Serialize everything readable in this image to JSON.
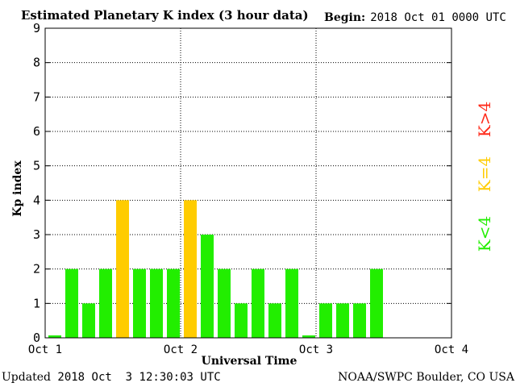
{
  "header": {
    "title": "Estimated Planetary K index (3 hour data)",
    "begin_label": "Begin:",
    "begin_value": "2018 Oct 01 0000 UTC"
  },
  "footer": {
    "updated_label": "Updated",
    "updated_value": "2018 Oct  3 12:30:03 UTC",
    "source": "NOAA/SWPC Boulder, CO USA"
  },
  "legend": {
    "high": {
      "label": "K>4",
      "color": "#ff2a1a"
    },
    "mid": {
      "label": "K=4",
      "color": "#ffcc00"
    },
    "low": {
      "label": "K<4",
      "color": "#22ee00"
    }
  },
  "chart_data": {
    "type": "bar",
    "title": "Estimated Planetary K index (3 hour data)",
    "xlabel": "Universal Time",
    "ylabel": "Kp index",
    "ylim": [
      0,
      9
    ],
    "yticks": [
      0,
      1,
      2,
      3,
      4,
      5,
      6,
      7,
      8,
      9
    ],
    "xticks": [
      "Oct 1",
      "Oct 2",
      "Oct 3",
      "Oct 4"
    ],
    "grid": true,
    "interval_hours": 3,
    "x": [
      "2018-10-01 00:00",
      "2018-10-01 03:00",
      "2018-10-01 06:00",
      "2018-10-01 09:00",
      "2018-10-01 12:00",
      "2018-10-01 15:00",
      "2018-10-01 18:00",
      "2018-10-01 21:00",
      "2018-10-02 00:00",
      "2018-10-02 03:00",
      "2018-10-02 06:00",
      "2018-10-02 09:00",
      "2018-10-02 12:00",
      "2018-10-02 15:00",
      "2018-10-02 18:00",
      "2018-10-02 21:00",
      "2018-10-03 00:00",
      "2018-10-03 03:00",
      "2018-10-03 06:00",
      "2018-10-03 09:00"
    ],
    "values": [
      0,
      2,
      1,
      2,
      4,
      2,
      2,
      2,
      4,
      3,
      2,
      1,
      2,
      1,
      2,
      0,
      1,
      1,
      1,
      2
    ]
  }
}
